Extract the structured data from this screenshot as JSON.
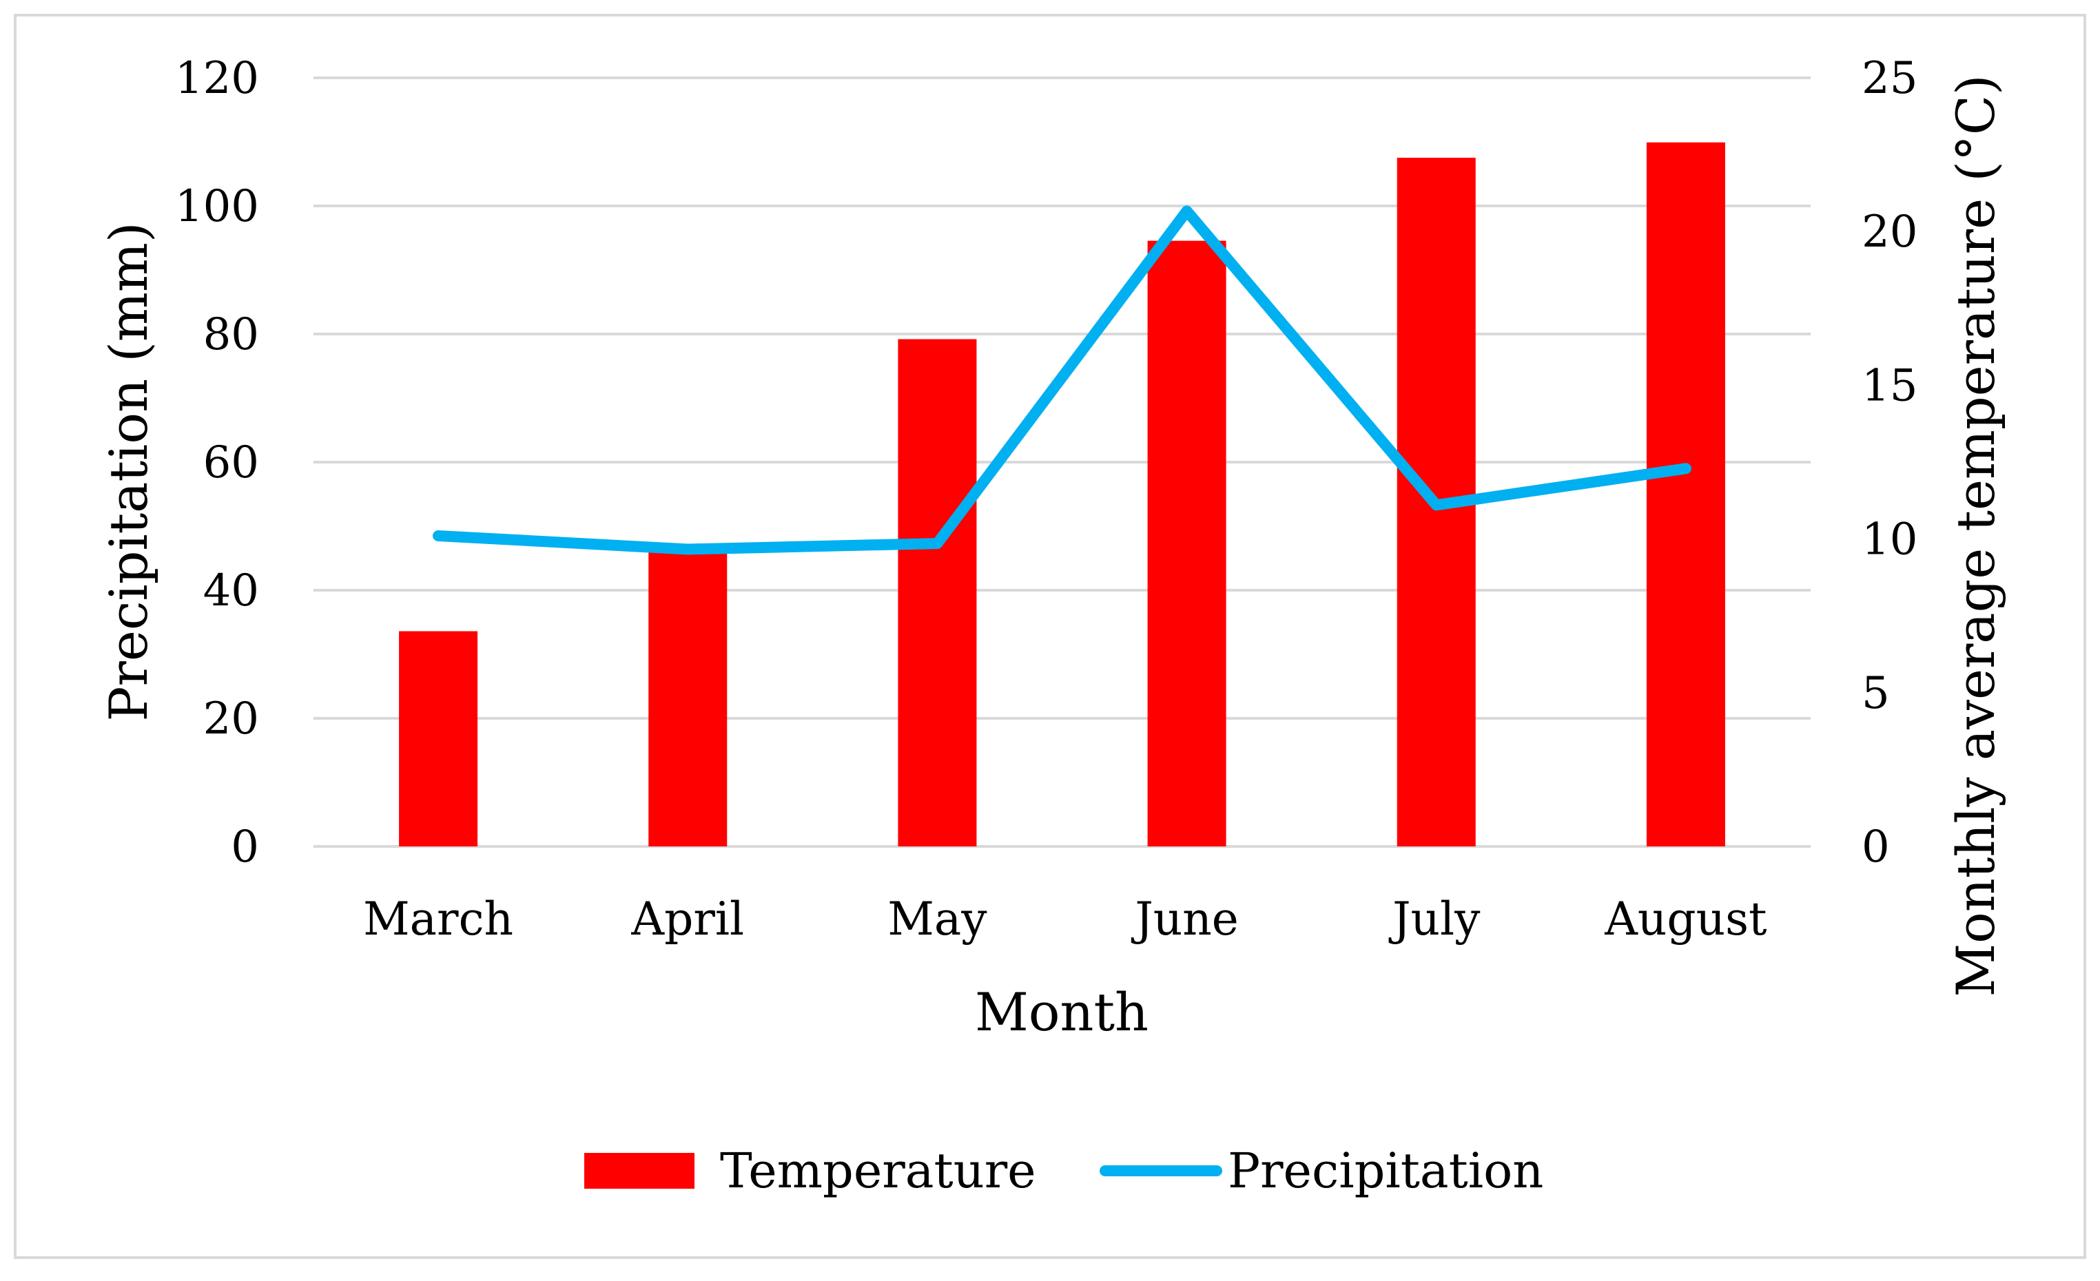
{
  "chart_data": {
    "type": "bar",
    "title": "",
    "xlabel": "Month",
    "ylabel": "Precipitation (mm)",
    "y2label": "Monthly average temperature (°C)",
    "categories": [
      "March",
      "April",
      "May",
      "June",
      "July",
      "August"
    ],
    "ylim": [
      0,
      120
    ],
    "y_ticks": [
      0,
      20,
      40,
      60,
      80,
      100,
      120
    ],
    "y2lim": [
      0,
      25
    ],
    "y2_ticks": [
      0,
      5,
      10,
      15,
      20,
      25
    ],
    "grid": true,
    "legend_position": "bottom",
    "series": [
      {
        "name": "Temperature",
        "type": "bar",
        "axis": "right",
        "color": "#ff0000",
        "values": [
          7.0,
          9.7,
          16.5,
          19.7,
          22.4,
          22.9
        ]
      },
      {
        "name": "Precipitation",
        "type": "line",
        "axis": "left",
        "color": "#00b0f0",
        "values": [
          48.5,
          46.4,
          47.3,
          99.2,
          53.3,
          59.0
        ]
      }
    ]
  },
  "colors": {
    "grid": "#d9d9d9",
    "frame": "#d9d9d9"
  }
}
